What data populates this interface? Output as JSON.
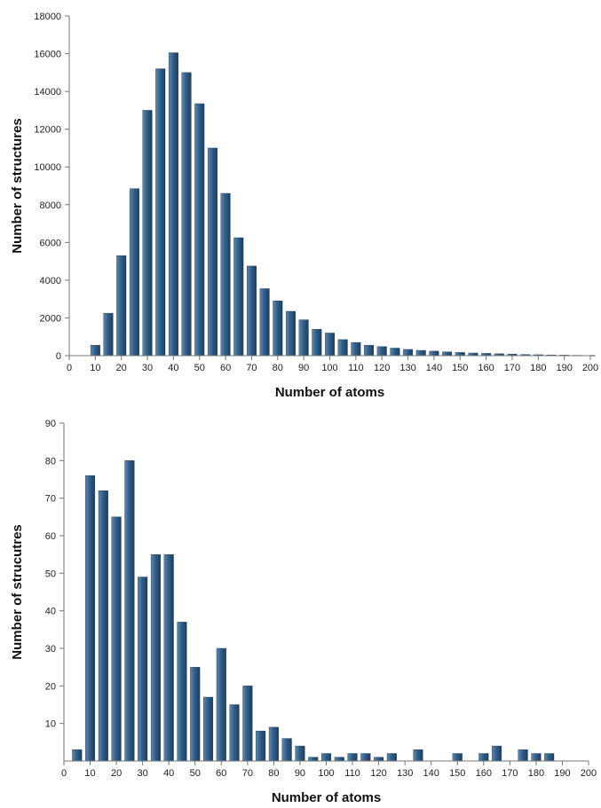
{
  "chart_data": [
    {
      "type": "bar",
      "xlabel": "Number of atoms",
      "ylabel": "Number of structures",
      "xticks": [
        0,
        10,
        20,
        30,
        40,
        50,
        60,
        70,
        80,
        90,
        100,
        110,
        120,
        130,
        140,
        150,
        160,
        170,
        180,
        190,
        200
      ],
      "yticks": [
        0,
        2000,
        4000,
        6000,
        8000,
        10000,
        12000,
        14000,
        16000,
        18000
      ],
      "xlim": [
        0,
        200
      ],
      "ylim": [
        0,
        18000
      ],
      "grid": false,
      "bar_color": "#2f5f8c",
      "x": [
        10,
        15,
        20,
        25,
        30,
        35,
        40,
        45,
        50,
        55,
        60,
        65,
        70,
        75,
        80,
        85,
        90,
        95,
        100,
        105,
        110,
        115,
        120,
        125,
        130,
        135,
        140,
        145,
        150,
        155,
        160,
        165,
        170,
        175,
        180,
        185,
        190,
        195,
        200
      ],
      "values": [
        550,
        2250,
        5300,
        8850,
        13000,
        15200,
        16050,
        15000,
        13350,
        11000,
        8600,
        6250,
        4750,
        3550,
        2900,
        2350,
        1900,
        1400,
        1200,
        850,
        700,
        550,
        480,
        400,
        330,
        280,
        240,
        200,
        170,
        140,
        120,
        100,
        80,
        60,
        50,
        40,
        30,
        20,
        15
      ]
    },
    {
      "type": "bar",
      "xlabel": "Number of atoms",
      "ylabel": "Number of strucutres",
      "xticks": [
        0,
        10,
        20,
        30,
        40,
        50,
        60,
        70,
        80,
        90,
        100,
        110,
        120,
        130,
        140,
        150,
        160,
        170,
        180,
        190,
        200
      ],
      "yticks": [
        10,
        20,
        30,
        40,
        50,
        60,
        70,
        80,
        90
      ],
      "xlim": [
        0,
        200
      ],
      "ylim": [
        0,
        90
      ],
      "grid": false,
      "bar_color": "#2f5f8c",
      "x": [
        5,
        10,
        15,
        20,
        25,
        30,
        35,
        40,
        45,
        50,
        55,
        60,
        65,
        70,
        75,
        80,
        85,
        90,
        95,
        100,
        105,
        110,
        115,
        120,
        125,
        130,
        135,
        140,
        145,
        150,
        155,
        160,
        165,
        170,
        175,
        180,
        185,
        190,
        195,
        200
      ],
      "values": [
        3,
        76,
        72,
        65,
        80,
        49,
        55,
        55,
        37,
        25,
        17,
        30,
        15,
        20,
        8,
        9,
        6,
        4,
        1,
        2,
        1,
        2,
        2,
        1,
        2,
        0,
        3,
        0,
        0,
        2,
        0,
        2,
        4,
        0,
        3,
        2,
        2,
        0,
        0,
        0
      ]
    }
  ]
}
